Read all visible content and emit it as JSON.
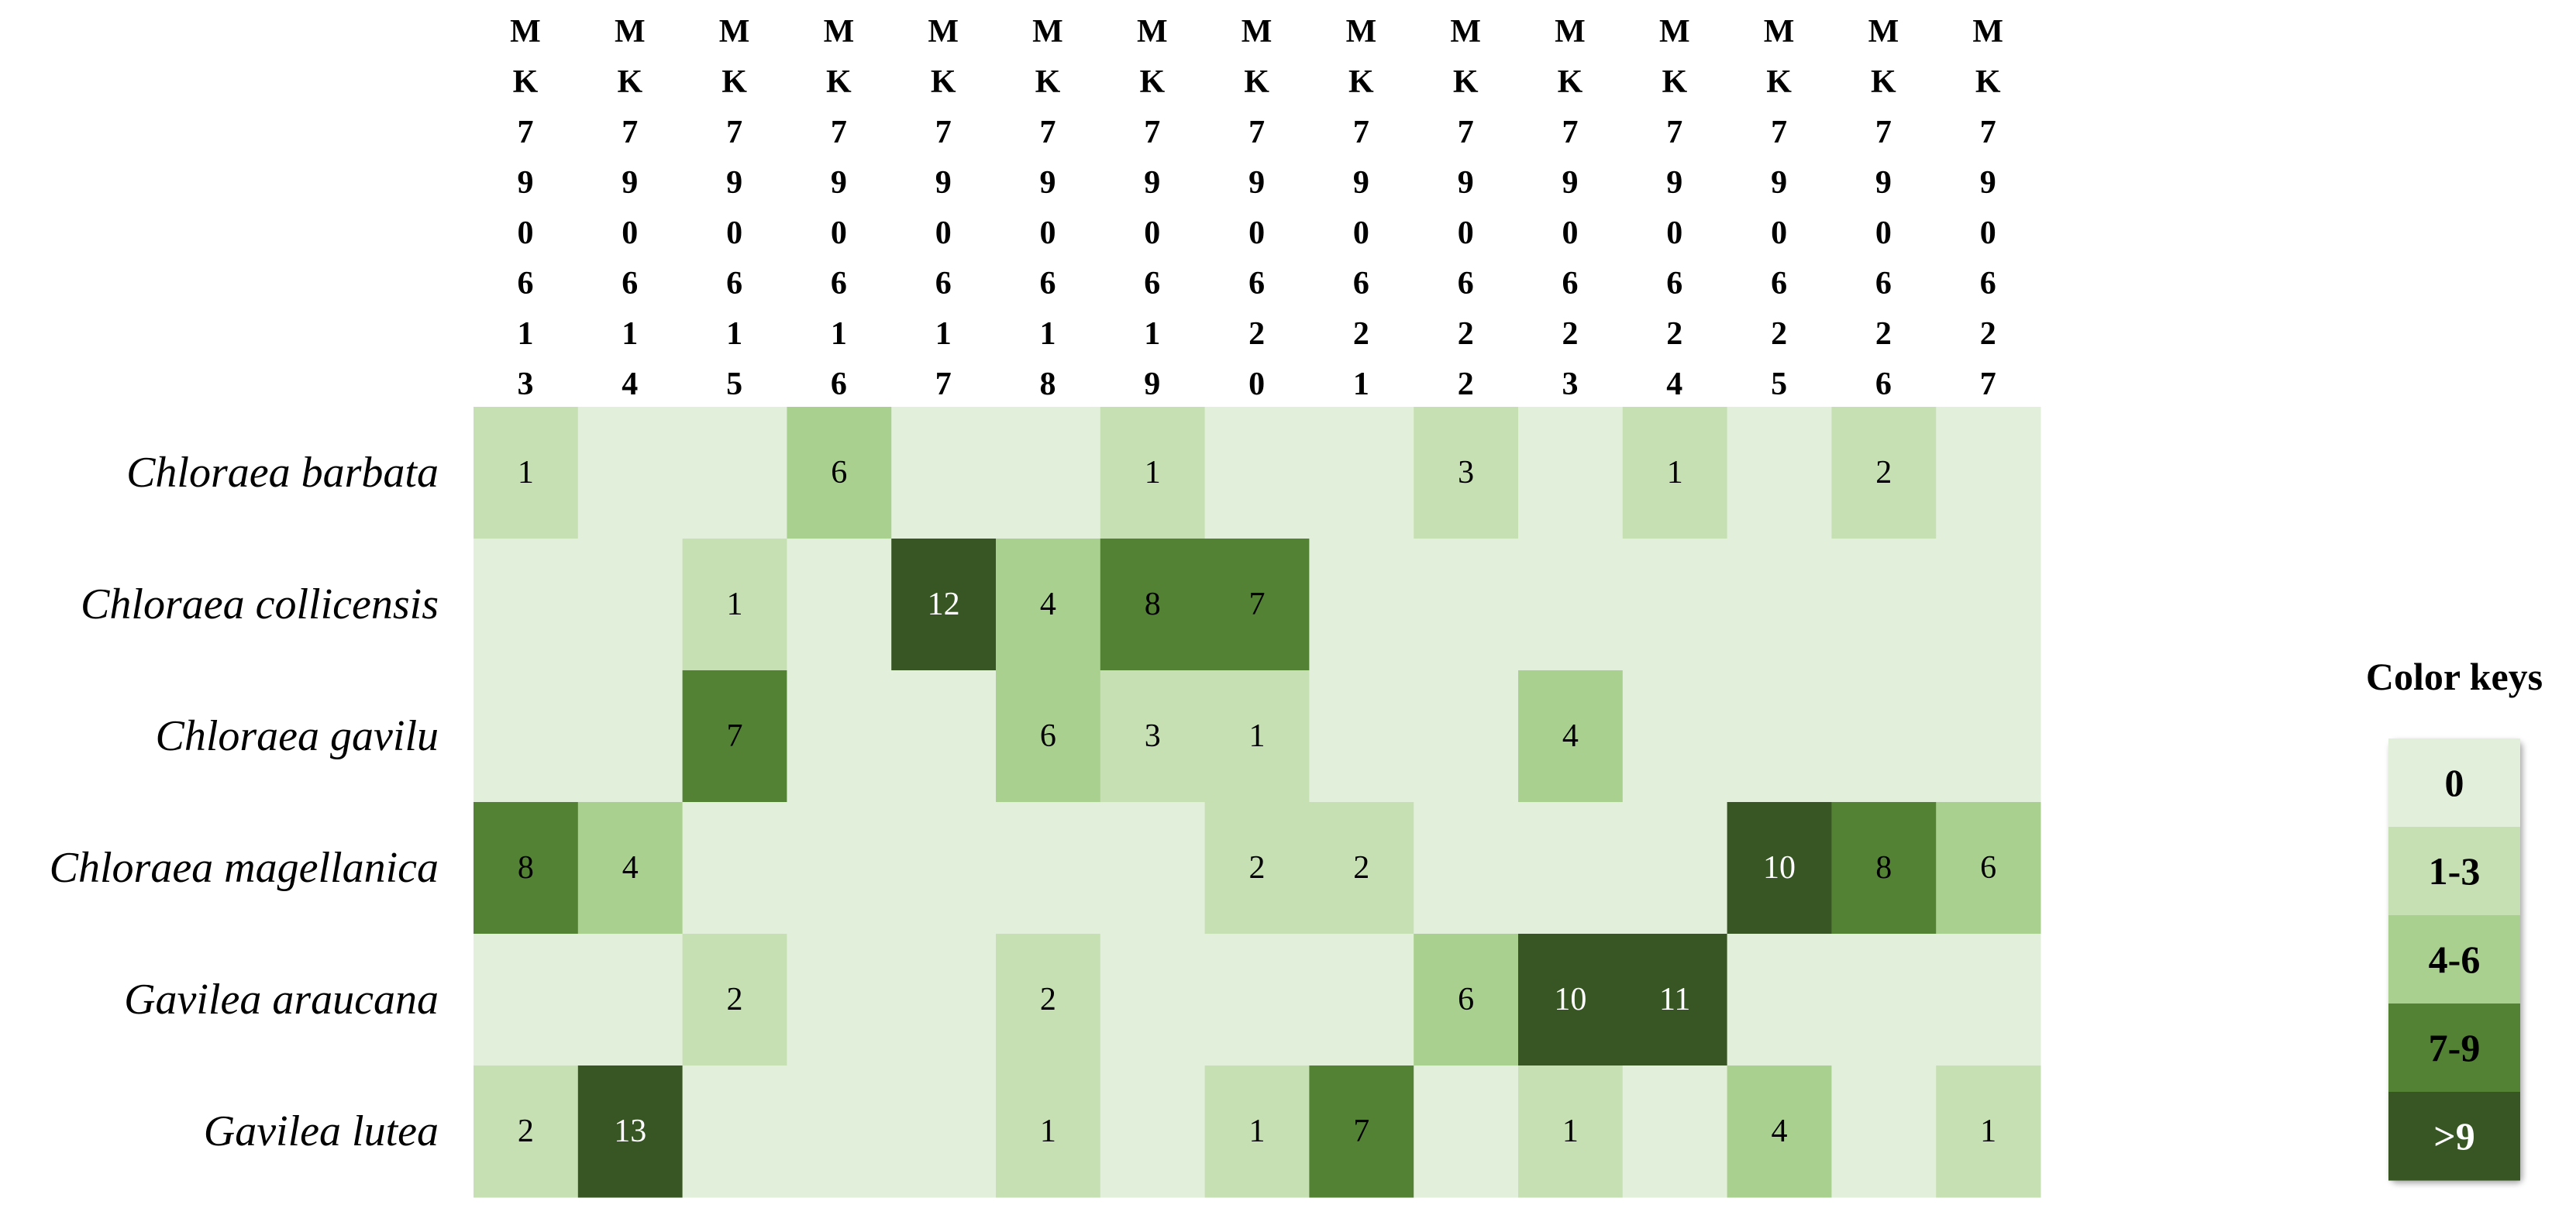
{
  "chart_data": {
    "type": "heatmap",
    "x_categories": [
      "MK790613",
      "MK790614",
      "MK790615",
      "MK790616",
      "MK790617",
      "MK790618",
      "MK790619",
      "MK790620",
      "MK790621",
      "MK790622",
      "MK790623",
      "MK790624",
      "MK790625",
      "MK790626",
      "MK790627"
    ],
    "y_categories": [
      "Chloraea barbata",
      "Chloraea collicensis",
      "Chloraea gavilu",
      "Chloraea magellanica",
      "Gavilea araucana",
      "Gavilea lutea"
    ],
    "values": [
      [
        1,
        0,
        0,
        6,
        0,
        0,
        1,
        0,
        0,
        3,
        0,
        1,
        0,
        2,
        0
      ],
      [
        0,
        0,
        1,
        0,
        12,
        4,
        8,
        7,
        0,
        0,
        0,
        0,
        0,
        0,
        0
      ],
      [
        0,
        0,
        7,
        0,
        0,
        6,
        3,
        1,
        0,
        0,
        4,
        0,
        0,
        0,
        0
      ],
      [
        8,
        4,
        0,
        0,
        0,
        0,
        0,
        2,
        2,
        0,
        0,
        0,
        10,
        8,
        6
      ],
      [
        0,
        0,
        2,
        0,
        0,
        2,
        0,
        0,
        0,
        6,
        10,
        11,
        0,
        0,
        0
      ],
      [
        2,
        13,
        0,
        0,
        0,
        1,
        0,
        1,
        7,
        0,
        1,
        0,
        4,
        0,
        1
      ]
    ],
    "legend": {
      "title": "Color keys",
      "items": [
        {
          "label": "0",
          "range": [
            0,
            0
          ],
          "color": "#e2efda",
          "label_color": "#000000"
        },
        {
          "label": "1-3",
          "range": [
            1,
            3
          ],
          "color": "#c6e0b4",
          "label_color": "#000000"
        },
        {
          "label": "4-6",
          "range": [
            4,
            6
          ],
          "color": "#a9d08e",
          "label_color": "#000000"
        },
        {
          "label": "7-9",
          "range": [
            7,
            9
          ],
          "color": "#548235",
          "label_color": "#000000"
        },
        {
          "label": ">9",
          "above": 9,
          "color": "#375623",
          "label_color": "#ffffff"
        }
      ]
    }
  }
}
